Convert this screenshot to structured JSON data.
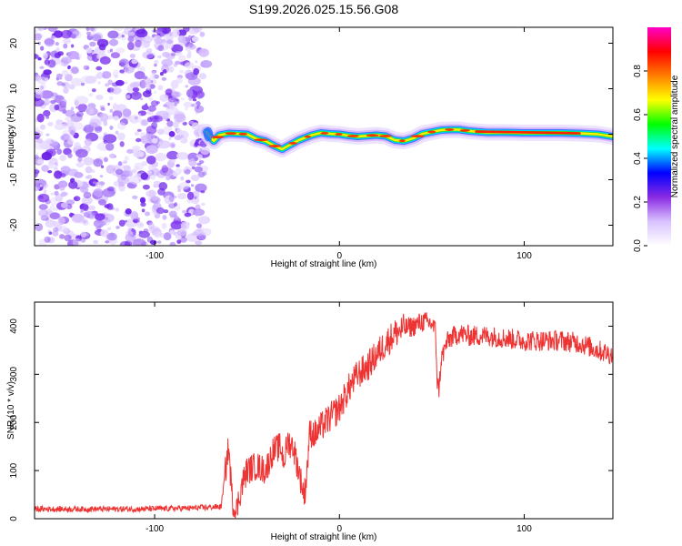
{
  "figure_title": "S199.2026.025.15.56.G08",
  "chart_data": [
    {
      "type": "heatmap",
      "title": "S199.2026.025.15.56.G08",
      "xlabel": "Height of straight line (km)",
      "ylabel": "Frequency (Hz)",
      "xlim": [
        -165,
        148
      ],
      "ylim": [
        -24.5,
        23.5
      ],
      "xticks": [
        -100,
        0,
        100
      ],
      "yticks": [
        -20,
        -10,
        0,
        10,
        20
      ],
      "noise_region_x": [
        -165,
        -72
      ],
      "ridge": {
        "x": [
          -72,
          -68,
          -65,
          -60,
          -55,
          -50,
          -45,
          -40,
          -35,
          -31,
          -28,
          -22,
          -15,
          -10,
          -5,
          0,
          5,
          10,
          20,
          25,
          30,
          35,
          40,
          45,
          50,
          55,
          60,
          65,
          70,
          80,
          90,
          100,
          110,
          120,
          130,
          140,
          148
        ],
        "freq": [
          0.5,
          -1.5,
          -0.2,
          0.2,
          0.1,
          0.0,
          -1.0,
          -1.5,
          -2.6,
          -3.3,
          -2.6,
          -1.3,
          -0.2,
          0.3,
          0.1,
          0.0,
          -0.3,
          -0.5,
          -0.2,
          -0.4,
          -1.3,
          -1.5,
          -0.9,
          0.1,
          0.5,
          0.9,
          1.0,
          1.0,
          0.7,
          0.4,
          0.4,
          0.3,
          0.3,
          0.3,
          0.2,
          0.0,
          -0.5
        ]
      },
      "colorbar": {
        "label": "Normalized spectral amplitude",
        "range": [
          0.0,
          1.0
        ],
        "ticks": [
          0.0,
          0.2,
          0.4,
          0.6,
          0.8
        ],
        "tick_labels": [
          "0.0",
          "0.2",
          "0.4",
          "0.6",
          "0.8"
        ],
        "colors": [
          "#ffffff",
          "#d9c2ff",
          "#8a2be2",
          "#0000ff",
          "#00ffff",
          "#00ff00",
          "#ffff00",
          "#ff7f00",
          "#ff0000",
          "#ff00c8"
        ]
      }
    },
    {
      "type": "line",
      "xlabel": "Height of straight line (km)",
      "ylabel": "SNR (10 * v/v)",
      "xlim": [
        -165,
        148
      ],
      "ylim": [
        0,
        450
      ],
      "xticks": [
        -100,
        0,
        100
      ],
      "yticks": [
        0,
        100,
        200,
        300,
        400
      ],
      "series": [
        {
          "name": "SNR",
          "color": "#ee3333",
          "x": [
            -165,
            -140,
            -110,
            -80,
            -64,
            -62,
            -60,
            -58,
            -56,
            -55,
            -54,
            -52,
            -50,
            -45,
            -40,
            -36,
            -32,
            -30,
            -28,
            -25,
            -20,
            -19,
            -18,
            -16,
            -13,
            -10,
            -5,
            0,
            5,
            10,
            15,
            20,
            25,
            30,
            35,
            40,
            45,
            50,
            52,
            53,
            54,
            55,
            58,
            60,
            65,
            70,
            80,
            90,
            100,
            110,
            120,
            130,
            140,
            148
          ],
          "y": [
            20,
            20,
            20,
            22,
            25,
            90,
            150,
            40,
            10,
            30,
            50,
            80,
            100,
            110,
            100,
            140,
            150,
            120,
            160,
            150,
            65,
            50,
            80,
            180,
            175,
            190,
            210,
            230,
            270,
            300,
            315,
            340,
            365,
            385,
            395,
            400,
            410,
            405,
            390,
            280,
            270,
            330,
            365,
            375,
            385,
            380,
            380,
            375,
            370,
            370,
            370,
            365,
            350,
            340
          ]
        }
      ]
    }
  ]
}
